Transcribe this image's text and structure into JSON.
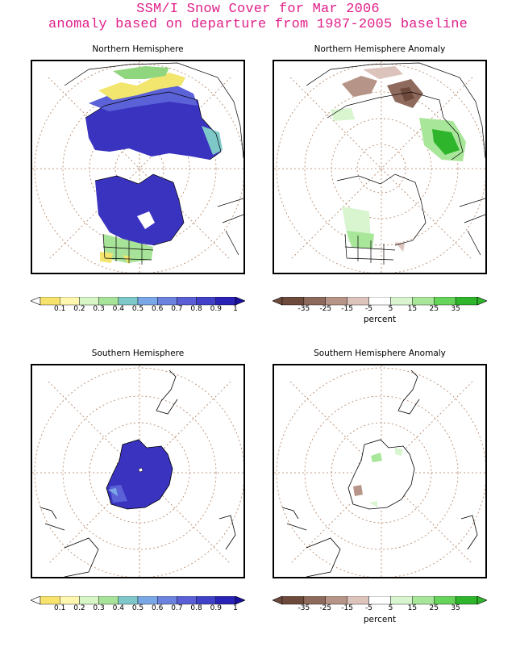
{
  "header": {
    "title_line1": "SSM/I Snow Cover for Mar 2006",
    "title_line2": "anomaly based on departure from 1987-2005 baseline"
  },
  "panels": {
    "nh": {
      "title": "Northern Hemisphere"
    },
    "nh_anom": {
      "title": "Northern Hemisphere Anomaly"
    },
    "sh": {
      "title": "Southern Hemisphere"
    },
    "sh_anom": {
      "title": "Southern Hemisphere Anomaly"
    }
  },
  "colorbars": {
    "cover": {
      "labels": [
        "0.1",
        "0.2",
        "0.3",
        "0.4",
        "0.5",
        "0.6",
        "0.7",
        "0.8",
        "0.9",
        "1"
      ],
      "colors": [
        "#f7e26b",
        "#fff6b0",
        "#d8f5c6",
        "#a8e39a",
        "#7fc8c9",
        "#7aa8e6",
        "#6b82de",
        "#5a5fd6",
        "#4040c8",
        "#2a22b4"
      ]
    },
    "anomaly": {
      "labels": [
        "-35",
        "-25",
        "-15",
        "-5",
        "5",
        "15",
        "25",
        "35"
      ],
      "colors": [
        "#6e4a3c",
        "#8e6a5c",
        "#b79488",
        "#dcc4bc",
        "#ffffff",
        "#d9f5d0",
        "#a8e69a",
        "#66d35a",
        "#2fb52c"
      ],
      "unit": "percent"
    }
  }
}
